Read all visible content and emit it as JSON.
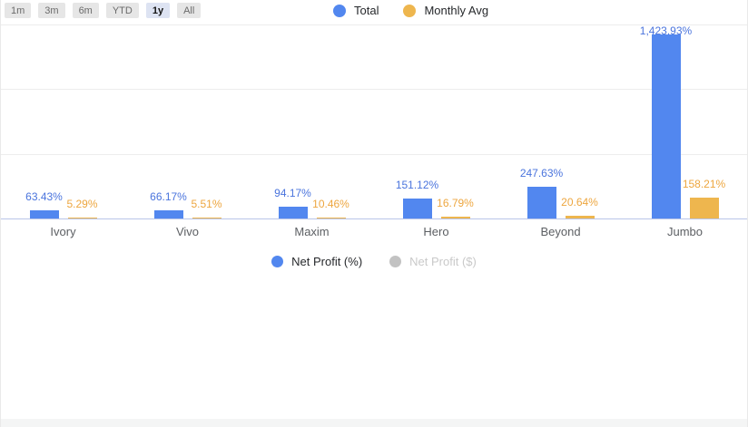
{
  "toolbar": {
    "ranges": [
      {
        "label": "1m",
        "active": false
      },
      {
        "label": "3m",
        "active": false
      },
      {
        "label": "6m",
        "active": false
      },
      {
        "label": "YTD",
        "active": false
      },
      {
        "label": "1y",
        "active": true
      },
      {
        "label": "All",
        "active": false
      }
    ]
  },
  "legend_top": [
    {
      "label": "Total",
      "color": "#5287ef"
    },
    {
      "label": "Monthly Avg",
      "color": "#eeb64e"
    }
  ],
  "legend_bottom": [
    {
      "label": "Net Profit (%)",
      "color": "#5287ef",
      "active": true
    },
    {
      "label": "Net Profit ($)",
      "color": "#c2c2c2",
      "active": false
    }
  ],
  "chart_data": {
    "type": "bar",
    "categories": [
      "Ivory",
      "Vivo",
      "Maxim",
      "Hero",
      "Beyond",
      "Jumbo"
    ],
    "series": [
      {
        "name": "Total",
        "color": "#5287ef",
        "label_color": "#4a74dd",
        "values": [
          63.43,
          66.17,
          94.17,
          151.12,
          247.63,
          1423.93
        ],
        "labels": [
          "63.43%",
          "66.17%",
          "94.17%",
          "151.12%",
          "247.63%",
          "1,423.93%"
        ]
      },
      {
        "name": "Monthly Avg",
        "color": "#eeb64e",
        "label_color": "#eda63f",
        "values": [
          5.29,
          5.51,
          10.46,
          16.79,
          20.64,
          158.21
        ],
        "labels": [
          "5.29%",
          "5.51%",
          "10.46%",
          "16.79%",
          "20.64%",
          "158.21%"
        ]
      }
    ],
    "xlabel": "",
    "ylabel": "",
    "ylim": [
      0,
      1500
    ],
    "gridlines": [
      500,
      1000,
      1500
    ],
    "grid": true,
    "y_axis_labels_visible": false,
    "legend_position": "top-and-bottom"
  }
}
